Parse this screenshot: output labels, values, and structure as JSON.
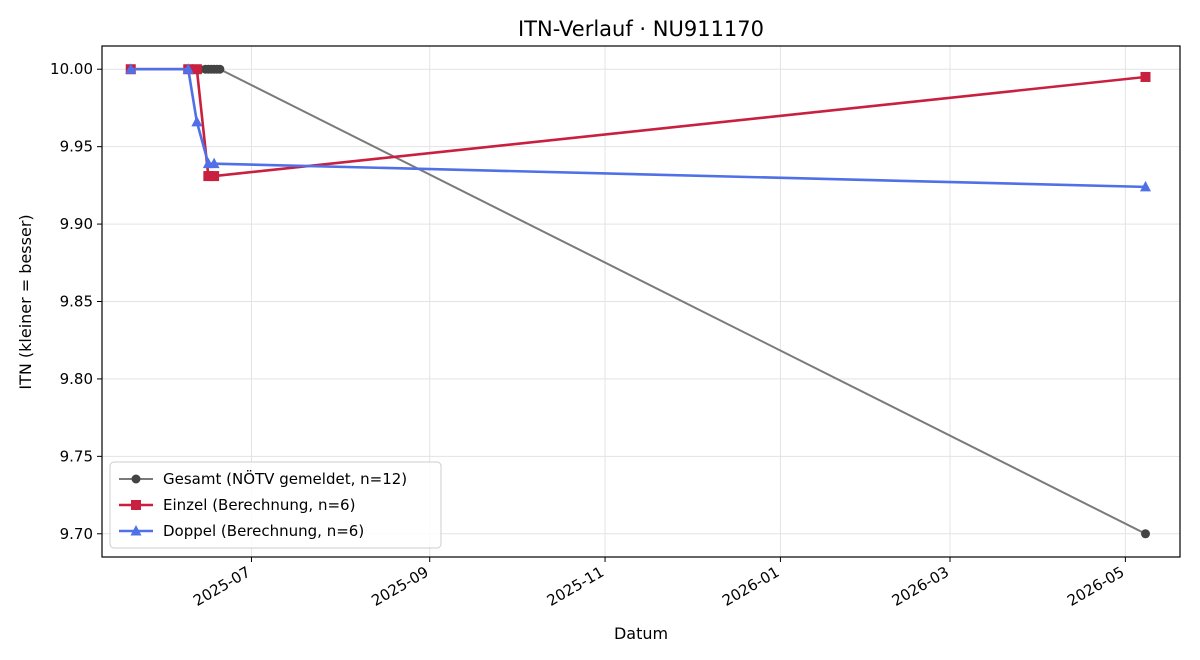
{
  "chart_data": {
    "type": "line",
    "title": "ITN-Verlauf · NU911170",
    "xlabel": "Datum",
    "ylabel": "ITN  (kleiner = besser)",
    "x_type": "date",
    "xlim": [
      "2025-05-10",
      "2026-05-20"
    ],
    "ylim": [
      9.685,
      10.015
    ],
    "x_ticks": [
      "2025-07-01",
      "2025-09-01",
      "2025-11-01",
      "2026-01-01",
      "2026-03-01",
      "2026-05-01"
    ],
    "x_tick_labels": [
      "2025-07",
      "2025-09",
      "2025-11",
      "2026-01",
      "2026-03",
      "2026-05"
    ],
    "y_ticks": [
      9.7,
      9.75,
      9.8,
      9.85,
      9.9,
      9.95,
      10.0
    ],
    "y_tick_labels": [
      "9.70",
      "9.75",
      "9.80",
      "9.85",
      "9.90",
      "9.95",
      "10.00"
    ],
    "grid": true,
    "legend_position": "lower-left",
    "series": [
      {
        "name": "Gesamt (NÖTV gemeldet, n=12)",
        "color": "#7a7a7a",
        "marker_color": "#444444",
        "marker": "circle",
        "x": [
          "2025-05-20",
          "2025-06-09",
          "2025-06-11",
          "2025-06-12",
          "2025-06-13",
          "2025-06-15",
          "2025-06-16",
          "2025-06-17",
          "2025-06-18",
          "2025-06-19",
          "2025-06-20",
          "2026-05-08"
        ],
        "y": [
          10.0,
          10.0,
          10.0,
          10.0,
          10.0,
          10.0,
          10.0,
          10.0,
          10.0,
          10.0,
          10.0,
          9.7
        ]
      },
      {
        "name": "Einzel (Berechnung, n=6)",
        "color": "#c8203e",
        "marker": "square",
        "x": [
          "2025-05-20",
          "2025-06-09",
          "2025-06-12",
          "2025-06-16",
          "2025-06-18",
          "2026-05-08"
        ],
        "y": [
          10.0,
          10.0,
          10.0,
          9.931,
          9.931,
          9.995
        ]
      },
      {
        "name": "Doppel (Berechnung, n=6)",
        "color": "#5070e8",
        "marker": "triangle",
        "x": [
          "2025-05-20",
          "2025-06-09",
          "2025-06-12",
          "2025-06-16",
          "2025-06-18",
          "2026-05-08"
        ],
        "y": [
          10.0,
          10.0,
          9.966,
          9.939,
          9.939,
          9.924
        ]
      }
    ]
  }
}
